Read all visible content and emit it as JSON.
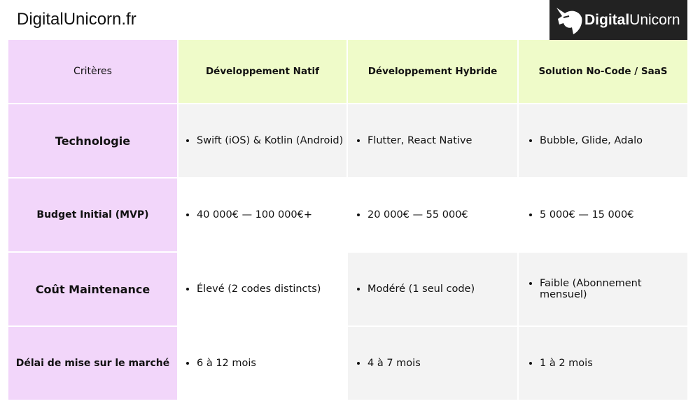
{
  "header": {
    "site": "DigitalUnicorn.fr",
    "logo": {
      "bold": "Digital",
      "light": "Unicorn"
    }
  },
  "table": {
    "columns": [
      "Critères",
      "Développement Natif",
      "Développement Hybride",
      "Solution No-Code / SaaS"
    ],
    "rows": [
      [
        "Technologie",
        "Swift (iOS) & Kotlin (Android)",
        "Flutter, React Native",
        "Bubble, Glide, Adalo"
      ],
      [
        "Budget Initial (MVP)",
        "40 000€ — 100 000€+",
        "20 000€ — 55 000€",
        "5 000€ — 15 000€"
      ],
      [
        "Coût Maintenance",
        "Élevé (2 codes distincts)",
        "Modéré (1 seul code)",
        "Faible (Abonnement mensuel)"
      ],
      [
        "Délai de mise sur le marché",
        "6 à 12 mois",
        "4 à 7 mois",
        "1 à 2 mois"
      ]
    ]
  }
}
